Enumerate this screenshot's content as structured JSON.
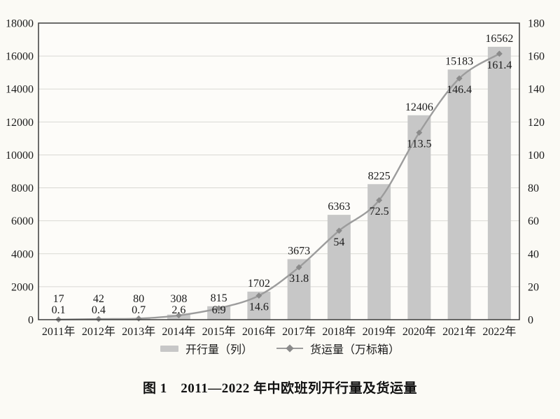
{
  "caption": "图 1　2011—2022 年中欧班列开行量及货运量",
  "legend": {
    "bar_label": "开行量（列）",
    "line_label": "货运量（万标箱）"
  },
  "colors": {
    "background": "#fbfaf5",
    "plot_fill": "#fdfcf9",
    "bar": "#c7c7c7",
    "line": "#9c9c9c",
    "marker": "#8a8a8a",
    "grid": "#d9d9d4",
    "border": "#3d3d3d",
    "text": "#1b1b1b"
  },
  "chart_data": {
    "type": "bar",
    "subtype": "bar+line combo",
    "title": "图 1　2011—2022 年中欧班列开行量及货运量",
    "categories": [
      "2011年",
      "2012年",
      "2013年",
      "2014年",
      "2015年",
      "2016年",
      "2017年",
      "2018年",
      "2019年",
      "2020年",
      "2021年",
      "2022年"
    ],
    "series": [
      {
        "name": "开行量（列）",
        "type": "bar",
        "axis": "left",
        "values": [
          17,
          42,
          80,
          308,
          815,
          1702,
          3673,
          6363,
          8225,
          12406,
          15183,
          16562
        ]
      },
      {
        "name": "货运量（万标箱）",
        "type": "line",
        "axis": "right",
        "values": [
          0.1,
          0.4,
          0.7,
          2.6,
          6.9,
          14.6,
          31.8,
          54,
          72.5,
          113.5,
          146.4,
          161.4
        ]
      }
    ],
    "left_axis": {
      "min": 0,
      "max": 18000,
      "step": 2000,
      "ticks": [
        0,
        2000,
        4000,
        6000,
        8000,
        10000,
        12000,
        14000,
        16000,
        18000
      ]
    },
    "right_axis": {
      "min": 0,
      "max": 180,
      "step": 20,
      "ticks": [
        0,
        20,
        40,
        60,
        80,
        100,
        120,
        140,
        160,
        180
      ]
    },
    "grid": true,
    "data_labels": true,
    "legend_position": "bottom"
  }
}
